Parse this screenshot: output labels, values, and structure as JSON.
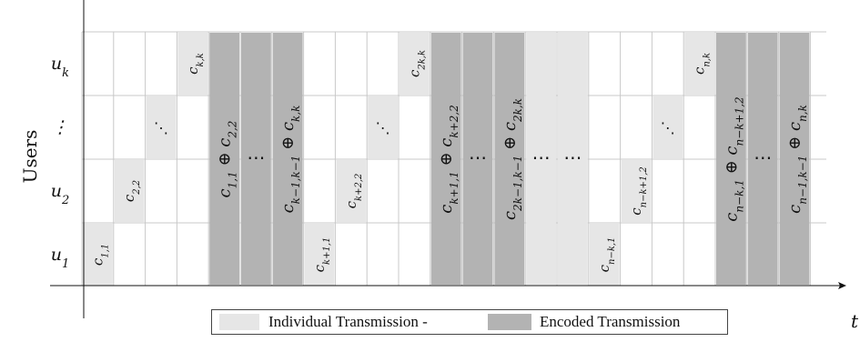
{
  "y_axis_label": "Users",
  "x_axis_label": "t",
  "user_labels": [
    "u_1",
    "u_2",
    "⋮",
    "u_k"
  ],
  "colors": {
    "individual": "#e6e6e6",
    "encoded": "#b3b3b3",
    "grid": "#c8c8c8"
  },
  "legend": {
    "individual_label": "Individual Transmission -",
    "encoded_label": "Encoded Transmission"
  },
  "cells": [
    {
      "kind": "individual",
      "row": 0,
      "html": "c<tspan baseline-shift='sub' font-size='10'>1,1</tspan>"
    },
    {
      "kind": "individual",
      "row": 1,
      "html": "c<tspan baseline-shift='sub' font-size='10'>2,2</tspan>"
    },
    {
      "kind": "individual-dots",
      "row": 2,
      "text": "⋱"
    },
    {
      "kind": "individual",
      "row": 3,
      "html": "c<tspan baseline-shift='sub' font-size='10'>k,k</tspan>"
    },
    {
      "kind": "encoded",
      "html": "c<tspan baseline-shift='sub' font-size='12'>1,1</tspan> ⊕ c<tspan baseline-shift='sub' font-size='12'>2,2</tspan>"
    },
    {
      "kind": "encoded-dots",
      "text": "⋯"
    },
    {
      "kind": "encoded",
      "html": "c<tspan baseline-shift='sub' font-size='12'>k−1,k−1</tspan> ⊕ c<tspan baseline-shift='sub' font-size='12'>k,k</tspan>"
    },
    {
      "kind": "individual",
      "row": 0,
      "html": "c<tspan baseline-shift='sub' font-size='10'>k+1,1</tspan>"
    },
    {
      "kind": "individual",
      "row": 1,
      "html": "c<tspan baseline-shift='sub' font-size='10'>k+2,2</tspan>"
    },
    {
      "kind": "individual-dots",
      "row": 2,
      "text": "⋱"
    },
    {
      "kind": "individual",
      "row": 3,
      "html": "c<tspan baseline-shift='sub' font-size='10'>2k,k</tspan>"
    },
    {
      "kind": "encoded",
      "html": "c<tspan baseline-shift='sub' font-size='12'>k+1,1</tspan> ⊕ c<tspan baseline-shift='sub' font-size='12'>k+2,2</tspan>"
    },
    {
      "kind": "encoded-dots",
      "text": "⋯"
    },
    {
      "kind": "encoded",
      "html": "c<tspan baseline-shift='sub' font-size='12'>2k−1,k−1</tspan> ⊕ c<tspan baseline-shift='sub' font-size='12'>2k,k</tspan>"
    },
    {
      "kind": "middle-dots",
      "text": "⋯"
    },
    {
      "kind": "middle-dots",
      "text": "⋯"
    },
    {
      "kind": "individual",
      "row": 0,
      "html": "c<tspan baseline-shift='sub' font-size='10'>n−k,1</tspan>"
    },
    {
      "kind": "individual",
      "row": 1,
      "html": "c<tspan baseline-shift='sub' font-size='10'>n−k+1,2</tspan>"
    },
    {
      "kind": "individual-dots",
      "row": 2,
      "text": "⋱"
    },
    {
      "kind": "individual",
      "row": 3,
      "html": "c<tspan baseline-shift='sub' font-size='10'>n,k</tspan>"
    },
    {
      "kind": "encoded",
      "html": "c<tspan baseline-shift='sub' font-size='12'>n−k,1</tspan> ⊕ c<tspan baseline-shift='sub' font-size='12'>n−k+1,2</tspan>"
    },
    {
      "kind": "encoded-dots",
      "text": "⋯"
    },
    {
      "kind": "encoded",
      "html": "c<tspan baseline-shift='sub' font-size='12'>n−1,k−1</tspan> ⊕ c<tspan baseline-shift='sub' font-size='12'>n,k</tspan>"
    }
  ]
}
